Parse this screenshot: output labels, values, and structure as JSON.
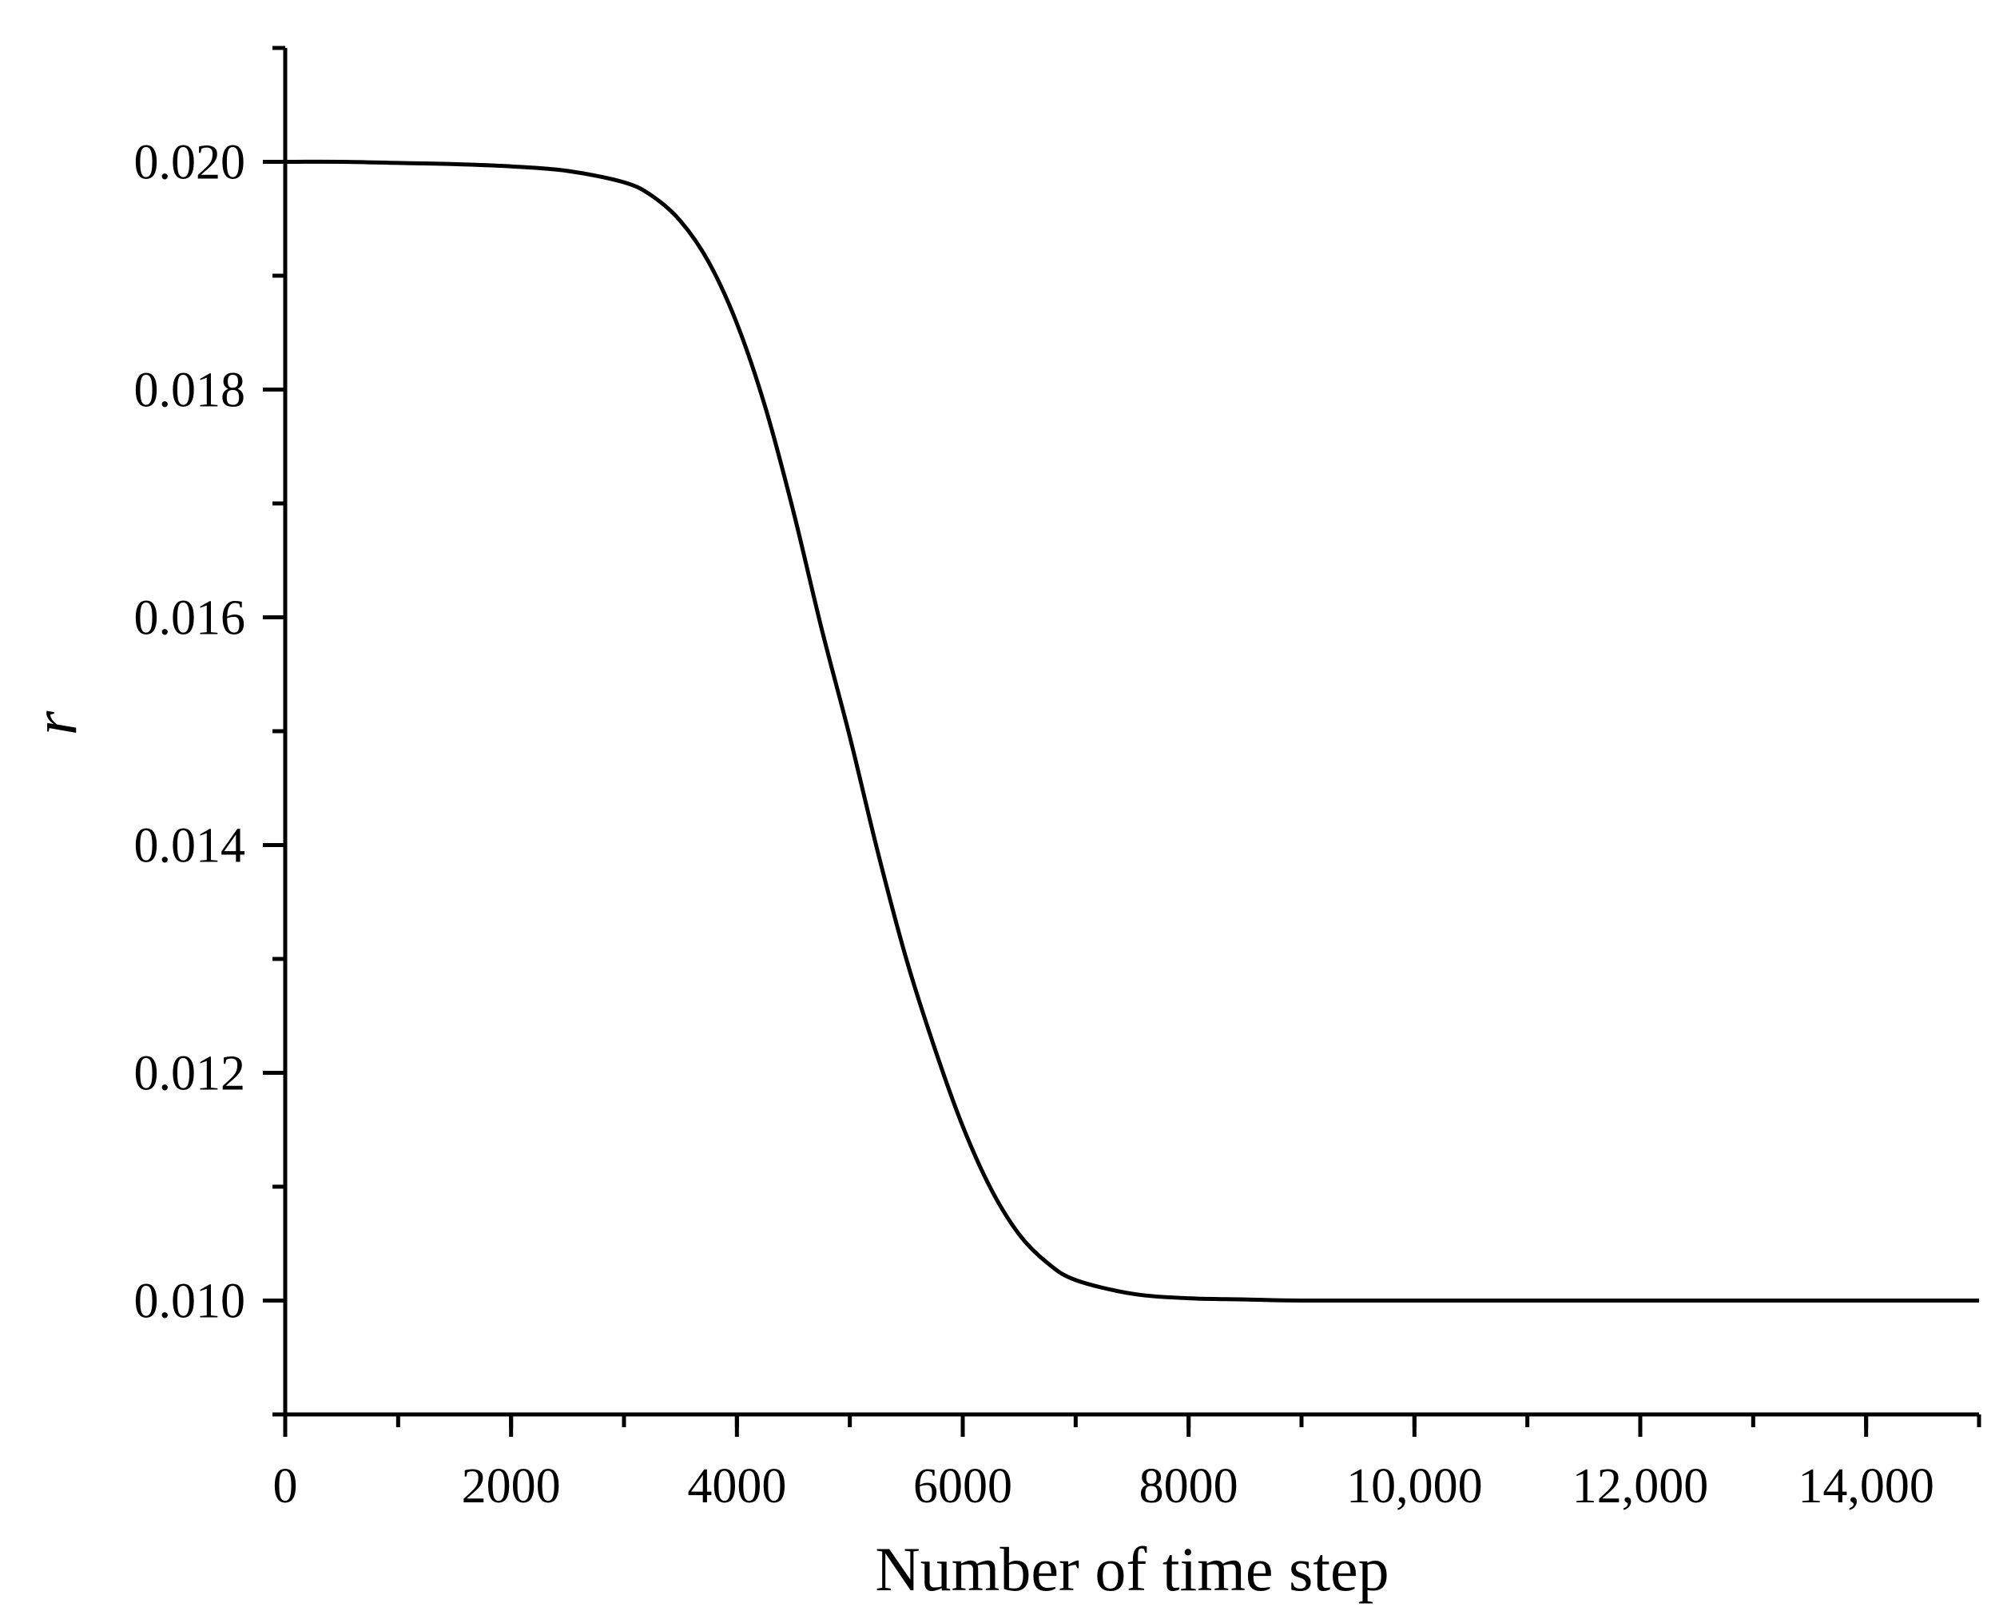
{
  "chart_data": {
    "type": "line",
    "title": "",
    "xlabel": "Number of time step",
    "ylabel": "r",
    "xlim": [
      0,
      15000
    ],
    "ylim": [
      0.009,
      0.021
    ],
    "xticks": [
      0,
      2000,
      4000,
      6000,
      8000,
      10000,
      12000,
      14000
    ],
    "xtick_labels": [
      "0",
      "2000",
      "4000",
      "6000",
      "8000",
      "10,000",
      "12,000",
      "14,000"
    ],
    "x_minor_step": 1000,
    "yticks": [
      0.01,
      0.012,
      0.014,
      0.016,
      0.018,
      0.02
    ],
    "ytick_labels": [
      "0.010",
      "0.012",
      "0.014",
      "0.016",
      "0.018",
      "0.020"
    ],
    "y_minor_step": 0.001,
    "grid": false,
    "legend": "none",
    "series": [
      {
        "color": "#000000",
        "x": [
          0,
          500,
          1000,
          1500,
          2000,
          2500,
          3000,
          3250,
          3500,
          3750,
          4000,
          4250,
          4500,
          4750,
          5000,
          5250,
          5500,
          5750,
          6000,
          6250,
          6500,
          6750,
          7000,
          7500,
          8000,
          8500,
          9000,
          10000,
          11000,
          12000,
          13000,
          14000,
          15000
        ],
        "y": [
          0.02,
          0.02,
          0.01999,
          0.01998,
          0.01996,
          0.01992,
          0.01982,
          0.0197,
          0.01948,
          0.01912,
          0.01858,
          0.01785,
          0.01693,
          0.0159,
          0.01495,
          0.01393,
          0.013,
          0.01222,
          0.01153,
          0.01098,
          0.01058,
          0.01033,
          0.01018,
          0.01006,
          0.01002,
          0.01001,
          0.01,
          0.01,
          0.01,
          0.01,
          0.01,
          0.01,
          0.01
        ]
      }
    ]
  }
}
